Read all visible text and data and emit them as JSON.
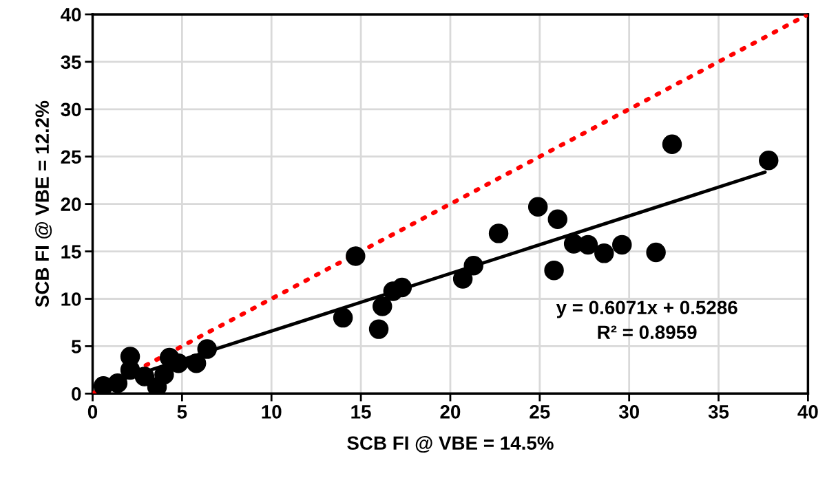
{
  "chart_data": {
    "type": "scatter",
    "xlabel": "SCB FI @ VBE = 14.5%",
    "ylabel": "SCB FI @ VBE = 12.2%",
    "xlim": [
      0,
      40
    ],
    "ylim": [
      0,
      40
    ],
    "xticks": [
      0,
      5,
      10,
      15,
      20,
      25,
      30,
      35,
      40
    ],
    "yticks": [
      0,
      5,
      10,
      15,
      20,
      25,
      30,
      35,
      40
    ],
    "grid": true,
    "marker": "circle",
    "series": [
      {
        "color": "#000000",
        "x": [
          0.6,
          1.4,
          2.1,
          2.1,
          2.9,
          3.6,
          4.0,
          4.3,
          4.5,
          4.8,
          5.8,
          6.4,
          14.0,
          14.7,
          16.0,
          16.2,
          16.8,
          17.3,
          20.7,
          21.3,
          22.7,
          24.9,
          26.0,
          25.8,
          26.9,
          27.7,
          28.6,
          29.6,
          31.5,
          32.4,
          37.8
        ],
        "values": [
          0.8,
          1.1,
          3.9,
          2.5,
          1.8,
          0.7,
          2.0,
          3.8,
          null,
          3.2,
          3.2,
          4.7,
          8.0,
          14.5,
          6.8,
          9.2,
          10.8,
          11.2,
          12.1,
          13.5,
          16.9,
          19.7,
          18.4,
          13.0,
          15.8,
          15.7,
          14.8,
          15.7,
          14.9,
          26.3,
          24.6
        ]
      },
      {
        "type": "line",
        "color": "#000000",
        "line_style": "solid",
        "marker": "none",
        "x": [
          0.6,
          37.6
        ],
        "values": [
          0.89,
          23.36
        ]
      },
      {
        "type": "line",
        "color": "#ff0000",
        "line_style": "dotted",
        "marker": "none",
        "x": [
          0,
          40
        ],
        "values": [
          0,
          40
        ]
      }
    ],
    "annotations": [
      "y = 0.6071x + 0.5286\nR² = 0.8959"
    ]
  }
}
